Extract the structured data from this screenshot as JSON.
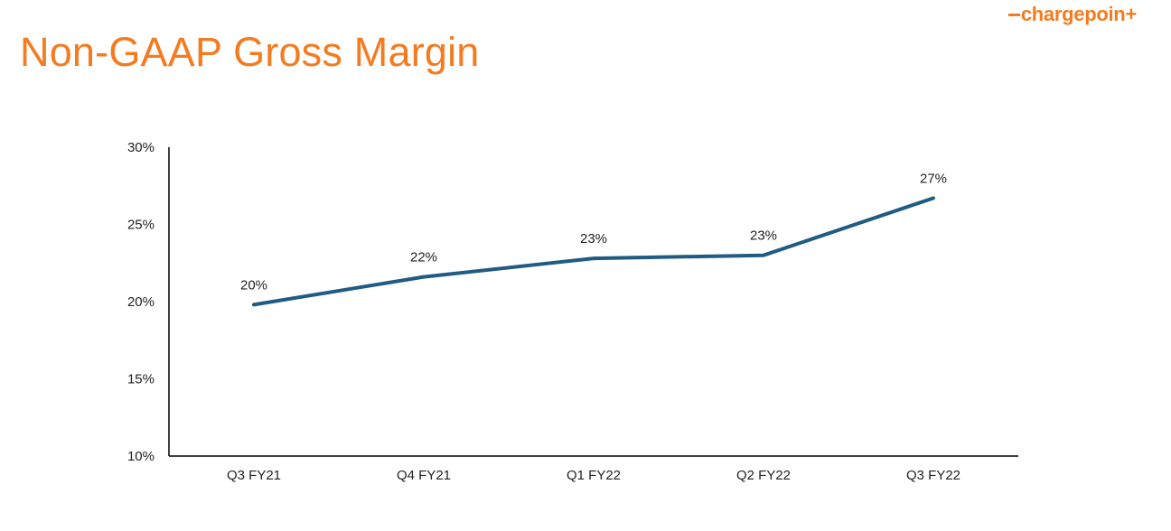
{
  "slide": {
    "title": "Non-GAAP Gross Margin",
    "title_color": "#f47b20",
    "logo": {
      "prefix": "charge",
      "suffix": "poin+",
      "color": "#f47b20",
      "name": "chargepoint-logo"
    }
  },
  "chart_data": {
    "type": "line",
    "title": "Non-GAAP Gross Margin",
    "xlabel": "",
    "ylabel": "",
    "categories": [
      "Q3 FY21",
      "Q4 FY21",
      "Q1 FY22",
      "Q2 FY22",
      "Q3 FY22"
    ],
    "series": [
      {
        "values": [
          19.8,
          21.6,
          22.8,
          23.0,
          26.7
        ],
        "data_labels": [
          "20%",
          "22%",
          "23%",
          "23%",
          "27%"
        ],
        "color": "#1f5b82"
      }
    ],
    "ylim": [
      10,
      30
    ],
    "yticks": [
      10,
      15,
      20,
      25,
      30
    ],
    "ytick_labels": [
      "10%",
      "15%",
      "20%",
      "25%",
      "30%"
    ],
    "grid": false,
    "legend": "none"
  }
}
